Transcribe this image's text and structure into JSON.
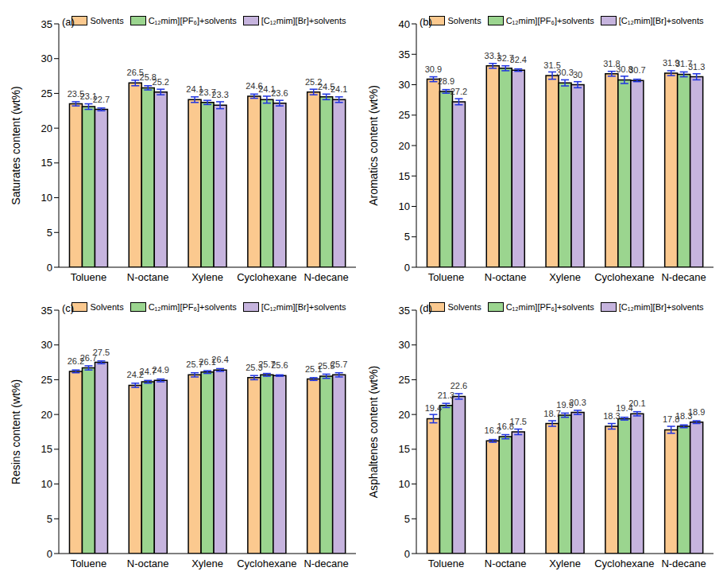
{
  "chart_data": [
    {
      "type": "bar",
      "title": "(a)",
      "y_label": "Saturates content (wt%)",
      "categories": [
        "Toluene",
        "N-octane",
        "Xylene",
        "Cyclohexane",
        "N-decane"
      ],
      "ylim": [
        0,
        35
      ],
      "yticks": [
        0,
        5,
        10,
        15,
        20,
        25,
        30,
        35
      ],
      "legend": "top",
      "data_labels": true,
      "series": [
        {
          "name": "Solvents",
          "color": "#fbc98f",
          "values": [
            23.5,
            26.5,
            24.1,
            24.6,
            25.2
          ],
          "errors": [
            0.3,
            0.4,
            0.4,
            0.3,
            0.4
          ]
        },
        {
          "name": "C₁₂mim][PF₆]+solvents",
          "color": "#9bd58f",
          "values": [
            23.1,
            25.8,
            23.7,
            24.1,
            24.5
          ],
          "errors": [
            0.4,
            0.3,
            0.3,
            0.5,
            0.4
          ]
        },
        {
          "name": "[C₁₂mim][Br]+solvents",
          "color": "#c6b4de",
          "values": [
            22.7,
            25.2,
            23.3,
            23.6,
            24.1
          ],
          "errors": [
            0.2,
            0.4,
            0.5,
            0.4,
            0.4
          ]
        }
      ]
    },
    {
      "type": "bar",
      "title": "(b)",
      "y_label": "Aromatics content (wt%)",
      "categories": [
        "Toluene",
        "N-octane",
        "Xylene",
        "Cyclohexane",
        "N-decane"
      ],
      "ylim": [
        0,
        40
      ],
      "yticks": [
        0,
        5,
        10,
        15,
        20,
        25,
        30,
        35,
        40
      ],
      "legend": "top",
      "data_labels": true,
      "series": [
        {
          "name": "Solvents",
          "color": "#fbc98f",
          "values": [
            30.9,
            33.1,
            31.5,
            31.8,
            31.9
          ],
          "errors": [
            0.4,
            0.4,
            0.6,
            0.4,
            0.4
          ]
        },
        {
          "name": "C₁₂mim][PF₆]+solvents",
          "color": "#9bd58f",
          "values": [
            28.9,
            32.7,
            30.3,
            30.8,
            31.7
          ],
          "errors": [
            0.3,
            0.4,
            0.5,
            0.6,
            0.4
          ]
        },
        {
          "name": "[C₁₂mim][Br]+solvents",
          "color": "#c6b4de",
          "values": [
            27.2,
            32.4,
            30,
            30.7,
            31.3
          ],
          "errors": [
            0.5,
            0.2,
            0.5,
            0.2,
            0.5
          ]
        }
      ]
    },
    {
      "type": "bar",
      "title": "(c)",
      "y_label": "Resins content (wt%)",
      "categories": [
        "Toluene",
        "N-octane",
        "Xylene",
        "Cyclohexane",
        "N-decane"
      ],
      "ylim": [
        0,
        35
      ],
      "yticks": [
        0,
        5,
        10,
        15,
        20,
        25,
        30,
        35
      ],
      "legend": "top",
      "data_labels": true,
      "series": [
        {
          "name": "Solvents",
          "color": "#fbc98f",
          "values": [
            26.2,
            24.2,
            25.7,
            25.3,
            25.1
          ],
          "errors": [
            0.2,
            0.3,
            0.3,
            0.3,
            0.2
          ]
        },
        {
          "name": "C₁₂mim][PF₆]+solvents",
          "color": "#9bd58f",
          "values": [
            26.7,
            24.7,
            26.1,
            25.7,
            25.5
          ],
          "errors": [
            0.3,
            0.2,
            0.2,
            0.2,
            0.3
          ]
        },
        {
          "name": "[C₁₂mim][Br]+solvents",
          "color": "#c6b4de",
          "values": [
            27.5,
            24.9,
            26.4,
            25.6,
            25.7
          ],
          "errors": [
            0.2,
            0.2,
            0.2,
            0.1,
            0.3
          ]
        }
      ]
    },
    {
      "type": "bar",
      "title": "(d)",
      "y_label": "Asphaltenes content (wt%)",
      "categories": [
        "Toluene",
        "N-octane",
        "Xylene",
        "Cyclohexane",
        "N-decane"
      ],
      "ylim": [
        0,
        35
      ],
      "yticks": [
        0,
        5,
        10,
        15,
        20,
        25,
        30,
        35
      ],
      "legend": "top",
      "data_labels": true,
      "series": [
        {
          "name": "Solvents",
          "color": "#fbc98f",
          "values": [
            19.4,
            16.2,
            18.7,
            18.3,
            17.8
          ],
          "errors": [
            0.6,
            0.2,
            0.4,
            0.4,
            0.5
          ]
        },
        {
          "name": "C₁₂mim][PF₆]+solvents",
          "color": "#9bd58f",
          "values": [
            21.3,
            16.8,
            19.9,
            19.4,
            18.3
          ],
          "errors": [
            0.3,
            0.3,
            0.3,
            0.2,
            0.2
          ]
        },
        {
          "name": "[C₁₂mim][Br]+solvents",
          "color": "#c6b4de",
          "values": [
            22.6,
            17.5,
            20.3,
            20.1,
            18.9
          ],
          "errors": [
            0.4,
            0.4,
            0.3,
            0.3,
            0.2
          ]
        }
      ]
    }
  ]
}
